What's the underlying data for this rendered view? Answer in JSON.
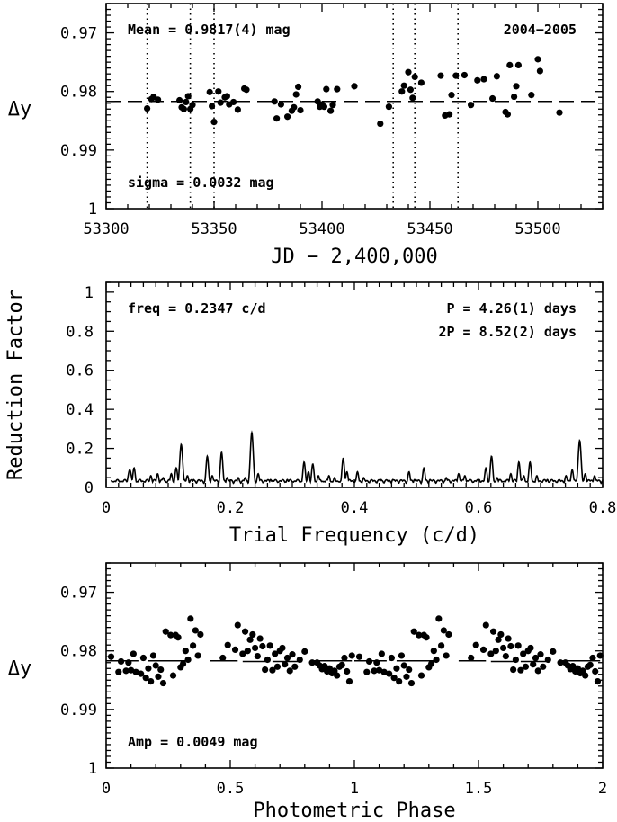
{
  "chart_data": [
    {
      "type": "scatter",
      "panel": "top",
      "title": "",
      "xlabel": "JD − 2,400,000",
      "ylabel": "Δy",
      "xlim": [
        53300,
        53530
      ],
      "ylim": [
        1.0,
        0.965
      ],
      "y_inverted": true,
      "xticks": [
        "53300",
        "53350",
        "53400",
        "53450",
        "53500"
      ],
      "yticks": [
        "0.97",
        "0.98",
        "0.99",
        "1"
      ],
      "annotations": {
        "mean": "Mean = 0.9817(4) mag",
        "season": "2004−2005",
        "sigma": "sigma = 0.0032 mag"
      },
      "mean_line": 0.9817,
      "vertical_lines": [
        53319,
        53339,
        53350,
        53433,
        53443,
        53463
      ],
      "points": [
        [
          53319,
          0.9829
        ],
        [
          53321,
          0.9813
        ],
        [
          53322,
          0.9809
        ],
        [
          53324,
          0.9814
        ],
        [
          53334,
          0.9815
        ],
        [
          53335,
          0.9827
        ],
        [
          53336,
          0.983
        ],
        [
          53337,
          0.9818
        ],
        [
          53338,
          0.9808
        ],
        [
          53339,
          0.983
        ],
        [
          53340,
          0.9823
        ],
        [
          53348,
          0.9801
        ],
        [
          53349,
          0.9825
        ],
        [
          53350,
          0.9852
        ],
        [
          53352,
          0.98
        ],
        [
          53353,
          0.9819
        ],
        [
          53355,
          0.981
        ],
        [
          53356,
          0.9808
        ],
        [
          53357,
          0.9822
        ],
        [
          53359,
          0.9818
        ],
        [
          53361,
          0.9831
        ],
        [
          53364,
          0.9795
        ],
        [
          53365,
          0.9797
        ],
        [
          53378,
          0.9817
        ],
        [
          53379,
          0.9846
        ],
        [
          53381,
          0.9822
        ],
        [
          53384,
          0.9843
        ],
        [
          53386,
          0.9833
        ],
        [
          53387,
          0.9827
        ],
        [
          53388,
          0.9805
        ],
        [
          53389,
          0.9792
        ],
        [
          53390,
          0.9832
        ],
        [
          53398,
          0.9817
        ],
        [
          53399,
          0.9826
        ],
        [
          53400,
          0.9822
        ],
        [
          53401,
          0.9826
        ],
        [
          53402,
          0.9796
        ],
        [
          53404,
          0.9833
        ],
        [
          53405,
          0.9823
        ],
        [
          53407,
          0.9796
        ],
        [
          53415,
          0.9791
        ],
        [
          53427,
          0.9855
        ],
        [
          53431,
          0.9826
        ],
        [
          53437,
          0.98
        ],
        [
          53438,
          0.979
        ],
        [
          53440,
          0.9767
        ],
        [
          53441,
          0.9797
        ],
        [
          53442,
          0.9811
        ],
        [
          53443,
          0.9775
        ],
        [
          53446,
          0.9785
        ],
        [
          53455,
          0.9773
        ],
        [
          53457,
          0.9841
        ],
        [
          53459,
          0.9839
        ],
        [
          53460,
          0.9806
        ],
        [
          53462,
          0.9773
        ],
        [
          53466,
          0.9772
        ],
        [
          53469,
          0.9823
        ],
        [
          53472,
          0.9781
        ],
        [
          53475,
          0.9779
        ],
        [
          53479,
          0.9812
        ],
        [
          53481,
          0.9774
        ],
        [
          53485,
          0.9835
        ],
        [
          53486,
          0.9839
        ],
        [
          53487,
          0.9755
        ],
        [
          53489,
          0.9809
        ],
        [
          53490,
          0.9791
        ],
        [
          53491,
          0.9755
        ],
        [
          53497,
          0.9806
        ],
        [
          53500,
          0.9745
        ],
        [
          53501,
          0.9765
        ],
        [
          53510,
          0.9836
        ]
      ]
    },
    {
      "type": "line",
      "panel": "middle",
      "title": "",
      "xlabel": "Trial Frequency (c/d)",
      "ylabel": "Reduction Factor",
      "xlim": [
        0,
        0.8
      ],
      "ylim": [
        0,
        1.05
      ],
      "xticks": [
        "0",
        "0.2",
        "0.4",
        "0.6",
        "0.8"
      ],
      "yticks": [
        "0",
        "0.2",
        "0.4",
        "0.6",
        "0.8",
        "1"
      ],
      "annotations": {
        "freq": "freq = 0.2347 c/d",
        "period": "P = 4.26(1) days",
        "period2": "2P = 8.52(2) days"
      },
      "baseline": 0.02,
      "peaks": [
        [
          0.038,
          0.09,
          0.004
        ],
        [
          0.045,
          0.1,
          0.003
        ],
        [
          0.055,
          0.04,
          0.003
        ],
        [
          0.072,
          0.06,
          0.003
        ],
        [
          0.083,
          0.07,
          0.003
        ],
        [
          0.092,
          0.05,
          0.003
        ],
        [
          0.105,
          0.07,
          0.003
        ],
        [
          0.113,
          0.1,
          0.003
        ],
        [
          0.121,
          0.22,
          0.0035
        ],
        [
          0.131,
          0.06,
          0.003
        ],
        [
          0.141,
          0.04,
          0.003
        ],
        [
          0.163,
          0.16,
          0.003
        ],
        [
          0.171,
          0.06,
          0.003
        ],
        [
          0.186,
          0.18,
          0.003
        ],
        [
          0.195,
          0.05,
          0.003
        ],
        [
          0.213,
          0.05,
          0.003
        ],
        [
          0.224,
          0.05,
          0.003
        ],
        [
          0.2347,
          0.28,
          0.0035
        ],
        [
          0.245,
          0.07,
          0.003
        ],
        [
          0.265,
          0.04,
          0.003
        ],
        [
          0.292,
          0.04,
          0.003
        ],
        [
          0.319,
          0.13,
          0.003
        ],
        [
          0.326,
          0.08,
          0.003
        ],
        [
          0.333,
          0.12,
          0.003
        ],
        [
          0.342,
          0.06,
          0.003
        ],
        [
          0.359,
          0.06,
          0.003
        ],
        [
          0.368,
          0.05,
          0.003
        ],
        [
          0.382,
          0.15,
          0.003
        ],
        [
          0.388,
          0.08,
          0.003
        ],
        [
          0.405,
          0.08,
          0.003
        ],
        [
          0.415,
          0.05,
          0.003
        ],
        [
          0.443,
          0.04,
          0.003
        ],
        [
          0.462,
          0.04,
          0.003
        ],
        [
          0.488,
          0.08,
          0.003
        ],
        [
          0.497,
          0.04,
          0.003
        ],
        [
          0.512,
          0.1,
          0.003
        ],
        [
          0.522,
          0.04,
          0.003
        ],
        [
          0.548,
          0.05,
          0.003
        ],
        [
          0.568,
          0.07,
          0.003
        ],
        [
          0.578,
          0.06,
          0.003
        ],
        [
          0.601,
          0.04,
          0.003
        ],
        [
          0.612,
          0.1,
          0.003
        ],
        [
          0.621,
          0.16,
          0.003
        ],
        [
          0.63,
          0.05,
          0.003
        ],
        [
          0.652,
          0.07,
          0.003
        ],
        [
          0.665,
          0.13,
          0.003
        ],
        [
          0.673,
          0.06,
          0.003
        ],
        [
          0.683,
          0.13,
          0.003
        ],
        [
          0.694,
          0.06,
          0.003
        ],
        [
          0.711,
          0.04,
          0.003
        ],
        [
          0.741,
          0.06,
          0.003
        ],
        [
          0.751,
          0.09,
          0.003
        ],
        [
          0.763,
          0.24,
          0.0035
        ],
        [
          0.772,
          0.07,
          0.003
        ],
        [
          0.787,
          0.06,
          0.003
        ]
      ]
    },
    {
      "type": "scatter",
      "panel": "bottom",
      "title": "",
      "xlabel": "Photometric Phase",
      "ylabel": "Δy",
      "xlim": [
        0,
        2
      ],
      "ylim": [
        1.0,
        0.965
      ],
      "y_inverted": true,
      "xticks": [
        "0",
        "0.5",
        "1",
        "1.5",
        "2"
      ],
      "yticks": [
        "0.97",
        "0.98",
        "0.99",
        "1"
      ],
      "annotations": {
        "amp": "Amp = 0.0049 mag"
      },
      "fit_segments": [
        [
          0.0,
          0.13,
          0.9817
        ],
        [
          0.17,
          0.34,
          0.9817
        ],
        [
          0.42,
          0.53,
          0.9817
        ],
        [
          0.55,
          0.66,
          0.9818
        ],
        [
          0.67,
          0.79,
          0.9818
        ],
        [
          0.83,
          0.99,
          0.9817
        ],
        [
          1.0,
          1.13,
          0.9817
        ],
        [
          1.17,
          1.34,
          0.9817
        ],
        [
          1.42,
          1.53,
          0.9817
        ],
        [
          1.55,
          1.66,
          0.9818
        ],
        [
          1.67,
          1.79,
          0.9818
        ],
        [
          1.83,
          1.99,
          0.9817
        ]
      ],
      "points": [
        [
          0.02,
          0.981
        ],
        [
          0.05,
          0.9836
        ],
        [
          0.06,
          0.9818
        ],
        [
          0.08,
          0.9834
        ],
        [
          0.09,
          0.982
        ],
        [
          0.1,
          0.9833
        ],
        [
          0.11,
          0.9805
        ],
        [
          0.12,
          0.9836
        ],
        [
          0.14,
          0.9839
        ],
        [
          0.15,
          0.9812
        ],
        [
          0.16,
          0.9846
        ],
        [
          0.17,
          0.983
        ],
        [
          0.18,
          0.9852
        ],
        [
          0.19,
          0.9808
        ],
        [
          0.2,
          0.9825
        ],
        [
          0.21,
          0.9844
        ],
        [
          0.22,
          0.9832
        ],
        [
          0.23,
          0.9855
        ],
        [
          0.24,
          0.9767
        ],
        [
          0.26,
          0.9773
        ],
        [
          0.27,
          0.9842
        ],
        [
          0.28,
          0.9773
        ],
        [
          0.29,
          0.9777
        ],
        [
          0.3,
          0.9828
        ],
        [
          0.31,
          0.9822
        ],
        [
          0.32,
          0.98
        ],
        [
          0.33,
          0.9815
        ],
        [
          0.34,
          0.9745
        ],
        [
          0.35,
          0.9791
        ],
        [
          0.36,
          0.9765
        ],
        [
          0.37,
          0.9808
        ],
        [
          0.38,
          0.9772
        ],
        [
          0.47,
          0.9812
        ],
        [
          0.49,
          0.979
        ],
        [
          0.52,
          0.9798
        ],
        [
          0.53,
          0.9756
        ],
        [
          0.55,
          0.9805
        ],
        [
          0.56,
          0.9767
        ],
        [
          0.57,
          0.98
        ],
        [
          0.58,
          0.9781
        ],
        [
          0.59,
          0.9772
        ],
        [
          0.6,
          0.9795
        ],
        [
          0.61,
          0.9809
        ],
        [
          0.62,
          0.9779
        ],
        [
          0.63,
          0.9792
        ],
        [
          0.64,
          0.9832
        ],
        [
          0.65,
          0.9815
        ],
        [
          0.66,
          0.9791
        ],
        [
          0.67,
          0.9833
        ],
        [
          0.68,
          0.9805
        ],
        [
          0.69,
          0.9827
        ],
        [
          0.7,
          0.98
        ],
        [
          0.71,
          0.9795
        ],
        [
          0.72,
          0.9823
        ],
        [
          0.73,
          0.9812
        ],
        [
          0.74,
          0.9834
        ],
        [
          0.75,
          0.9806
        ],
        [
          0.76,
          0.9827
        ],
        [
          0.78,
          0.9815
        ],
        [
          0.8,
          0.9801
        ],
        [
          0.83,
          0.982
        ],
        [
          0.85,
          0.982
        ],
        [
          0.86,
          0.9825
        ],
        [
          0.87,
          0.9831
        ],
        [
          0.88,
          0.9826
        ],
        [
          0.89,
          0.9835
        ],
        [
          0.9,
          0.983
        ],
        [
          0.91,
          0.9838
        ],
        [
          0.92,
          0.9834
        ],
        [
          0.93,
          0.9842
        ],
        [
          0.94,
          0.9827
        ],
        [
          0.95,
          0.9824
        ],
        [
          0.96,
          0.9812
        ],
        [
          0.97,
          0.9835
        ],
        [
          0.98,
          0.9852
        ],
        [
          0.99,
          0.9808
        ]
      ]
    }
  ]
}
